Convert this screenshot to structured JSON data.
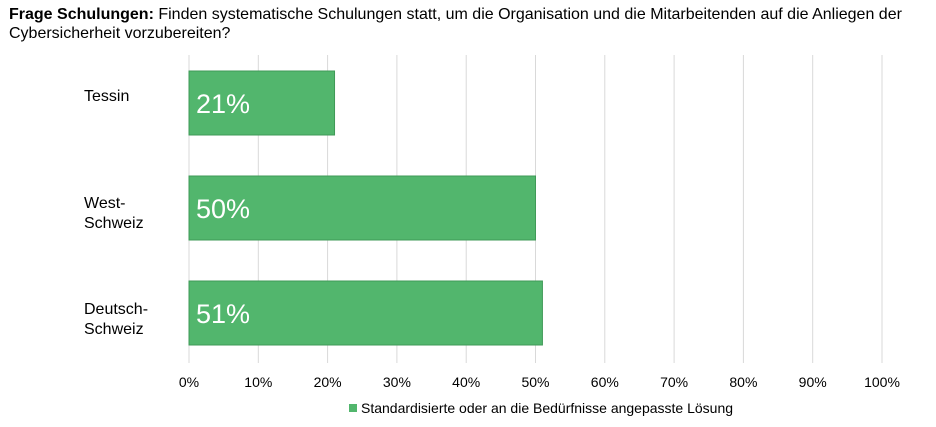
{
  "title": {
    "bold": "Frage Schulungen:",
    "text": " Finden systematische Schulungen statt, um die Organisation und die Mitarbeitenden auf die Anliegen der Cybersicherheit vorzubereiten?"
  },
  "colors": {
    "bar": "#52b66d",
    "bar_border": "#3f9a57",
    "grid": "#d9d9d9",
    "text": "#000000",
    "bar_label": "#ffffff"
  },
  "chart_data": {
    "type": "bar",
    "orientation": "horizontal",
    "categories": [
      "Tessin",
      "West-\nSchweiz",
      "Deutsch-\nSchweiz"
    ],
    "series": [
      {
        "name": "Standardisierte oder an die Bedürfnisse angepasste Lösung",
        "values": [
          21,
          50,
          51
        ],
        "labels": [
          "21%",
          "50%",
          "51%"
        ]
      }
    ],
    "xlim": [
      0,
      100
    ],
    "xticks": [
      "0%",
      "10%",
      "20%",
      "30%",
      "40%",
      "50%",
      "60%",
      "70%",
      "80%",
      "90%",
      "100%"
    ],
    "grid": true,
    "legend_position": "bottom"
  }
}
